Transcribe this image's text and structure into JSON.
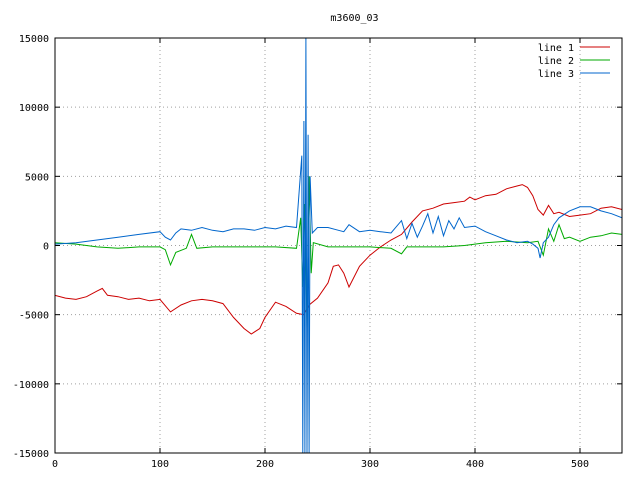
{
  "chart_data": {
    "type": "line",
    "title": "m3600_03",
    "xlabel": "",
    "ylabel": "",
    "xlim": [
      0,
      540
    ],
    "ylim": [
      -15000,
      15000
    ],
    "grid": true,
    "legend_position": "top-right",
    "x_ticks": [
      0,
      100,
      200,
      300,
      400,
      500
    ],
    "x_tick_labels": [
      "0",
      "100",
      "200",
      "300",
      "400",
      "500"
    ],
    "y_ticks": [
      -15000,
      -10000,
      -5000,
      0,
      5000,
      10000,
      15000
    ],
    "y_tick_labels": [
      "-15000",
      "-10000",
      "-5000",
      "0",
      "5000",
      "10000",
      "15000"
    ],
    "series": [
      {
        "name": "line 1",
        "color": "#cc0000",
        "points": [
          [
            0,
            -3600
          ],
          [
            10,
            -3800
          ],
          [
            20,
            -3900
          ],
          [
            30,
            -3700
          ],
          [
            40,
            -3300
          ],
          [
            45,
            -3100
          ],
          [
            50,
            -3600
          ],
          [
            60,
            -3700
          ],
          [
            70,
            -3900
          ],
          [
            80,
            -3800
          ],
          [
            90,
            -4000
          ],
          [
            100,
            -3900
          ],
          [
            110,
            -4800
          ],
          [
            120,
            -4300
          ],
          [
            130,
            -4000
          ],
          [
            140,
            -3900
          ],
          [
            150,
            -4000
          ],
          [
            160,
            -4200
          ],
          [
            170,
            -5200
          ],
          [
            180,
            -6000
          ],
          [
            187,
            -6400
          ],
          [
            195,
            -6000
          ],
          [
            200,
            -5200
          ],
          [
            210,
            -4100
          ],
          [
            220,
            -4400
          ],
          [
            230,
            -4900
          ],
          [
            237,
            -5000
          ],
          [
            242,
            -4300
          ],
          [
            250,
            -3800
          ],
          [
            260,
            -2700
          ],
          [
            265,
            -1500
          ],
          [
            270,
            -1400
          ],
          [
            275,
            -2000
          ],
          [
            280,
            -3000
          ],
          [
            290,
            -1500
          ],
          [
            300,
            -700
          ],
          [
            310,
            -100
          ],
          [
            320,
            400
          ],
          [
            330,
            800
          ],
          [
            340,
            1700
          ],
          [
            350,
            2500
          ],
          [
            360,
            2700
          ],
          [
            370,
            3000
          ],
          [
            380,
            3100
          ],
          [
            390,
            3200
          ],
          [
            395,
            3500
          ],
          [
            400,
            3300
          ],
          [
            410,
            3600
          ],
          [
            420,
            3700
          ],
          [
            430,
            4100
          ],
          [
            440,
            4300
          ],
          [
            445,
            4400
          ],
          [
            450,
            4200
          ],
          [
            455,
            3600
          ],
          [
            460,
            2600
          ],
          [
            465,
            2200
          ],
          [
            470,
            2900
          ],
          [
            475,
            2300
          ],
          [
            480,
            2400
          ],
          [
            490,
            2100
          ],
          [
            500,
            2200
          ],
          [
            510,
            2300
          ],
          [
            520,
            2700
          ],
          [
            530,
            2800
          ],
          [
            540,
            2600
          ]
        ]
      },
      {
        "name": "line 2",
        "color": "#00aa00",
        "points": [
          [
            0,
            200
          ],
          [
            20,
            100
          ],
          [
            40,
            -100
          ],
          [
            60,
            -200
          ],
          [
            80,
            -100
          ],
          [
            100,
            -100
          ],
          [
            105,
            -300
          ],
          [
            110,
            -1400
          ],
          [
            115,
            -500
          ],
          [
            125,
            -200
          ],
          [
            130,
            800
          ],
          [
            135,
            -200
          ],
          [
            150,
            -100
          ],
          [
            170,
            -100
          ],
          [
            190,
            -100
          ],
          [
            210,
            -100
          ],
          [
            230,
            -200
          ],
          [
            234,
            2000
          ],
          [
            236,
            -3000
          ],
          [
            238,
            3000
          ],
          [
            240,
            -6000
          ],
          [
            242,
            5000
          ],
          [
            244,
            -2000
          ],
          [
            246,
            200
          ],
          [
            260,
            -100
          ],
          [
            280,
            -100
          ],
          [
            300,
            -100
          ],
          [
            320,
            -200
          ],
          [
            330,
            -600
          ],
          [
            335,
            -100
          ],
          [
            350,
            -100
          ],
          [
            370,
            -100
          ],
          [
            390,
            0
          ],
          [
            410,
            200
          ],
          [
            430,
            300
          ],
          [
            450,
            200
          ],
          [
            460,
            300
          ],
          [
            465,
            -700
          ],
          [
            470,
            1200
          ],
          [
            475,
            300
          ],
          [
            480,
            1500
          ],
          [
            485,
            500
          ],
          [
            490,
            600
          ],
          [
            500,
            300
          ],
          [
            510,
            600
          ],
          [
            520,
            700
          ],
          [
            530,
            900
          ],
          [
            540,
            800
          ]
        ]
      },
      {
        "name": "line 3",
        "color": "#0066cc",
        "points": [
          [
            0,
            100
          ],
          [
            20,
            200
          ],
          [
            40,
            400
          ],
          [
            60,
            600
          ],
          [
            80,
            800
          ],
          [
            100,
            1000
          ],
          [
            105,
            600
          ],
          [
            110,
            400
          ],
          [
            115,
            900
          ],
          [
            120,
            1200
          ],
          [
            130,
            1100
          ],
          [
            140,
            1300
          ],
          [
            150,
            1100
          ],
          [
            160,
            1000
          ],
          [
            170,
            1200
          ],
          [
            180,
            1200
          ],
          [
            190,
            1100
          ],
          [
            200,
            1300
          ],
          [
            210,
            1200
          ],
          [
            220,
            1400
          ],
          [
            230,
            1300
          ],
          [
            235,
            6500
          ],
          [
            236,
            -15000
          ],
          [
            237,
            9000
          ],
          [
            238,
            -15000
          ],
          [
            239,
            15000
          ],
          [
            240,
            -15000
          ],
          [
            241,
            8000
          ],
          [
            242,
            -15000
          ],
          [
            243,
            5000
          ],
          [
            245,
            900
          ],
          [
            250,
            1300
          ],
          [
            260,
            1300
          ],
          [
            270,
            1100
          ],
          [
            275,
            1000
          ],
          [
            280,
            1500
          ],
          [
            290,
            1000
          ],
          [
            300,
            1100
          ],
          [
            310,
            1000
          ],
          [
            320,
            900
          ],
          [
            330,
            1800
          ],
          [
            335,
            500
          ],
          [
            340,
            1600
          ],
          [
            345,
            600
          ],
          [
            350,
            1400
          ],
          [
            355,
            2300
          ],
          [
            360,
            900
          ],
          [
            365,
            2100
          ],
          [
            370,
            700
          ],
          [
            375,
            1800
          ],
          [
            380,
            1200
          ],
          [
            385,
            2000
          ],
          [
            390,
            1300
          ],
          [
            400,
            1400
          ],
          [
            410,
            1000
          ],
          [
            420,
            700
          ],
          [
            430,
            400
          ],
          [
            440,
            200
          ],
          [
            450,
            300
          ],
          [
            455,
            100
          ],
          [
            460,
            -200
          ],
          [
            462,
            -900
          ],
          [
            465,
            200
          ],
          [
            470,
            600
          ],
          [
            475,
            1500
          ],
          [
            480,
            2000
          ],
          [
            490,
            2500
          ],
          [
            500,
            2800
          ],
          [
            510,
            2800
          ],
          [
            520,
            2500
          ],
          [
            530,
            2300
          ],
          [
            540,
            2000
          ]
        ]
      }
    ]
  }
}
